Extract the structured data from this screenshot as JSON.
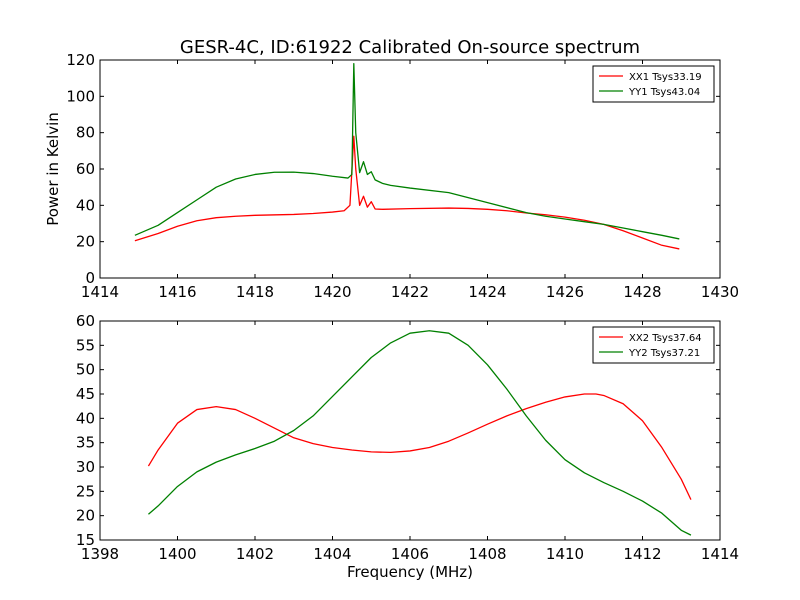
{
  "figure": {
    "title": "GESR-4C, ID:61922 Calibrated On-source spectrum",
    "xlabel": "Frequency (MHz)",
    "ylabel": "Power in Kelvin"
  },
  "colors": {
    "red": "#ff0000",
    "green": "#008000"
  },
  "chart_data": [
    {
      "type": "line",
      "title": "GESR-4C, ID:61922 Calibrated On-source spectrum",
      "ylabel": "Power in Kelvin",
      "xlabel": "",
      "xlim": [
        1414,
        1430
      ],
      "ylim": [
        0,
        120
      ],
      "xticks": [
        1414,
        1416,
        1418,
        1420,
        1422,
        1424,
        1426,
        1428,
        1430
      ],
      "yticks": [
        0,
        20,
        40,
        60,
        80,
        100,
        120
      ],
      "legend": "top-right",
      "grid": false,
      "series": [
        {
          "name": "XX1 Tsys33.19",
          "color": "#ff0000",
          "points": [
            [
              1414.9,
              20.5
            ],
            [
              1415.5,
              24.5
            ],
            [
              1416,
              28.5
            ],
            [
              1416.5,
              31.5
            ],
            [
              1417,
              33.2
            ],
            [
              1417.5,
              34
            ],
            [
              1418,
              34.5
            ],
            [
              1419,
              35
            ],
            [
              1419.5,
              35.5
            ],
            [
              1420,
              36.3
            ],
            [
              1420.3,
              37
            ],
            [
              1420.45,
              40
            ],
            [
              1420.55,
              78
            ],
            [
              1420.6,
              60
            ],
            [
              1420.7,
              40
            ],
            [
              1420.8,
              45
            ],
            [
              1420.9,
              39
            ],
            [
              1421.0,
              42
            ],
            [
              1421.1,
              38
            ],
            [
              1421.3,
              37.8
            ],
            [
              1422,
              38.2
            ],
            [
              1423,
              38.5
            ],
            [
              1423.5,
              38.3
            ],
            [
              1424,
              37.8
            ],
            [
              1424.5,
              37
            ],
            [
              1425,
              35.8
            ],
            [
              1425.5,
              34.8
            ],
            [
              1426,
              33.5
            ],
            [
              1426.5,
              31.8
            ],
            [
              1427,
              29.5
            ],
            [
              1427.5,
              26
            ],
            [
              1428,
              22
            ],
            [
              1428.5,
              18
            ],
            [
              1428.95,
              16
            ]
          ]
        },
        {
          "name": "YY1 Tsys43.04",
          "color": "#008000",
          "points": [
            [
              1414.9,
              23.5
            ],
            [
              1415.5,
              29
            ],
            [
              1416,
              36
            ],
            [
              1416.5,
              43
            ],
            [
              1417,
              50
            ],
            [
              1417.5,
              54.5
            ],
            [
              1418,
              57
            ],
            [
              1418.5,
              58.2
            ],
            [
              1419,
              58.3
            ],
            [
              1419.5,
              57.5
            ],
            [
              1420,
              56
            ],
            [
              1420.4,
              55
            ],
            [
              1420.5,
              57
            ],
            [
              1420.55,
              118
            ],
            [
              1420.6,
              80
            ],
            [
              1420.7,
              58
            ],
            [
              1420.8,
              64
            ],
            [
              1420.9,
              57
            ],
            [
              1421.0,
              58.5
            ],
            [
              1421.1,
              54
            ],
            [
              1421.3,
              52
            ],
            [
              1421.5,
              51
            ],
            [
              1422,
              49.5
            ],
            [
              1423,
              47
            ],
            [
              1424,
              41.5
            ],
            [
              1425,
              36
            ],
            [
              1425.5,
              34
            ],
            [
              1426,
              32.5
            ],
            [
              1426.5,
              31
            ],
            [
              1427,
              29.5
            ],
            [
              1427.5,
              27.5
            ],
            [
              1428,
              25.5
            ],
            [
              1428.5,
              23.5
            ],
            [
              1428.95,
              21.5
            ]
          ]
        }
      ]
    },
    {
      "type": "line",
      "title": "",
      "xlabel": "Frequency (MHz)",
      "ylabel": "",
      "xlim": [
        1398,
        1414
      ],
      "ylim": [
        15,
        60
      ],
      "xticks": [
        1398,
        1400,
        1402,
        1404,
        1406,
        1408,
        1410,
        1412,
        1414
      ],
      "yticks": [
        15,
        20,
        25,
        30,
        35,
        40,
        45,
        50,
        55,
        60
      ],
      "legend": "top-right",
      "grid": false,
      "series": [
        {
          "name": "XX2 Tsys37.64",
          "color": "#ff0000",
          "points": [
            [
              1399.25,
              30.2
            ],
            [
              1399.5,
              33.5
            ],
            [
              1400,
              39
            ],
            [
              1400.5,
              41.8
            ],
            [
              1401,
              42.4
            ],
            [
              1401.5,
              41.8
            ],
            [
              1402,
              40
            ],
            [
              1402.5,
              38
            ],
            [
              1403,
              36
            ],
            [
              1403.5,
              34.8
            ],
            [
              1404,
              34
            ],
            [
              1404.5,
              33.5
            ],
            [
              1405,
              33.1
            ],
            [
              1405.5,
              33
            ],
            [
              1406,
              33.3
            ],
            [
              1406.5,
              34
            ],
            [
              1407,
              35.3
            ],
            [
              1407.5,
              37
            ],
            [
              1408,
              38.8
            ],
            [
              1408.5,
              40.5
            ],
            [
              1409,
              42
            ],
            [
              1409.5,
              43.3
            ],
            [
              1410,
              44.4
            ],
            [
              1410.5,
              45
            ],
            [
              1410.8,
              45
            ],
            [
              1411,
              44.7
            ],
            [
              1411.5,
              43
            ],
            [
              1412,
              39.5
            ],
            [
              1412.5,
              34
            ],
            [
              1413,
              27.5
            ],
            [
              1413.25,
              23.3
            ]
          ]
        },
        {
          "name": "YY2 Tsys37.21",
          "color": "#008000",
          "points": [
            [
              1399.25,
              20.3
            ],
            [
              1399.5,
              22
            ],
            [
              1400,
              26
            ],
            [
              1400.5,
              29
            ],
            [
              1401,
              31
            ],
            [
              1401.5,
              32.5
            ],
            [
              1402,
              33.8
            ],
            [
              1402.5,
              35.3
            ],
            [
              1403,
              37.5
            ],
            [
              1403.5,
              40.5
            ],
            [
              1404,
              44.5
            ],
            [
              1404.5,
              48.5
            ],
            [
              1405,
              52.5
            ],
            [
              1405.5,
              55.5
            ],
            [
              1406,
              57.5
            ],
            [
              1406.5,
              58
            ],
            [
              1407,
              57.5
            ],
            [
              1407.5,
              55
            ],
            [
              1408,
              51
            ],
            [
              1408.5,
              46
            ],
            [
              1409,
              40.5
            ],
            [
              1409.5,
              35.5
            ],
            [
              1410,
              31.5
            ],
            [
              1410.5,
              28.8
            ],
            [
              1411,
              26.8
            ],
            [
              1411.5,
              25
            ],
            [
              1412,
              23
            ],
            [
              1412.5,
              20.5
            ],
            [
              1413,
              17
            ],
            [
              1413.25,
              16
            ]
          ]
        }
      ]
    }
  ]
}
